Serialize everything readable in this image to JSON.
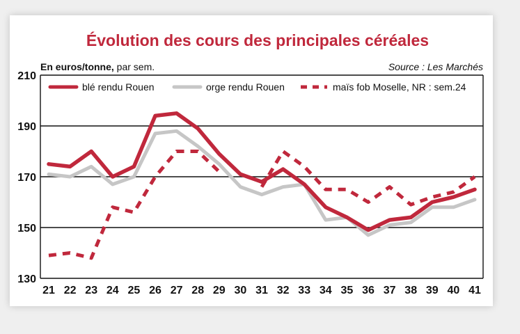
{
  "colors": {
    "title": "#c0283c",
    "ble": "#c0283c",
    "orge": "#c6c6c6",
    "mais": "#c0283c",
    "grid": "#111111",
    "background": "#ffffff"
  },
  "chart_data": {
    "type": "line",
    "title": "Évolution des cours des principales céréales",
    "unit_label_bold": "En euros/tonne,",
    "unit_label_rest": " par sem.",
    "source": "Source : Les Marchés",
    "ylim": [
      130,
      210
    ],
    "yticks": [
      130,
      150,
      170,
      190,
      210
    ],
    "grid": true,
    "legend_position": "top",
    "x": [
      "21",
      "22",
      "23",
      "24",
      "25",
      "26",
      "27",
      "28",
      "29",
      "30",
      "31",
      "32",
      "33",
      "34",
      "35",
      "36",
      "37",
      "38",
      "39",
      "40",
      "41"
    ],
    "series": [
      {
        "name": "blé rendu Rouen",
        "style": "solid",
        "color": "#c0283c",
        "values": [
          175,
          174,
          180,
          170,
          174,
          194,
          195,
          189,
          179,
          171,
          168,
          173,
          167,
          158,
          154,
          149,
          153,
          154,
          160,
          162,
          165
        ]
      },
      {
        "name": "orge rendu Rouen",
        "style": "solid",
        "color": "#c6c6c6",
        "values": [
          171,
          170,
          174,
          167,
          170,
          187,
          188,
          182,
          175,
          166,
          163,
          166,
          167,
          153,
          154,
          147,
          151,
          152,
          158,
          158,
          161
        ]
      },
      {
        "name": "maïs fob Moselle, NR : sem.24",
        "style": "dashed",
        "color": "#c0283c",
        "values": [
          139,
          140,
          138,
          158,
          156,
          170,
          180,
          180,
          172,
          null,
          166,
          180,
          174,
          165,
          165,
          160,
          166,
          159,
          162,
          164,
          170
        ]
      }
    ]
  }
}
